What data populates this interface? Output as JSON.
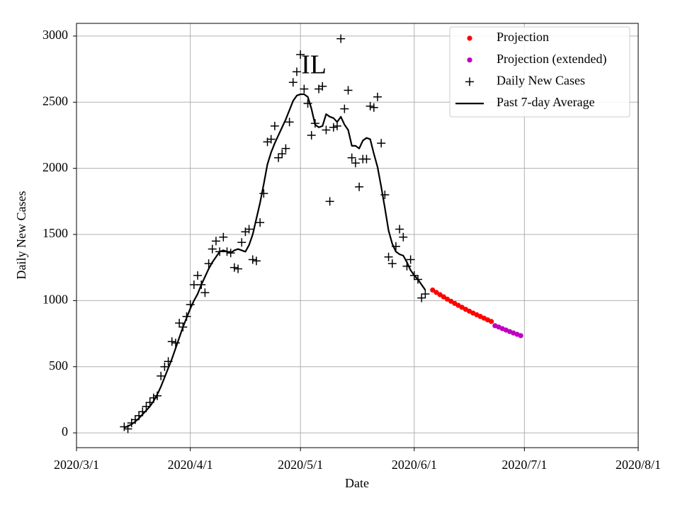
{
  "chart_data": {
    "type": "line",
    "title": "IL",
    "xlabel": "Date",
    "ylabel": "Daily New Cases",
    "xlim": [
      "2020-03-01",
      "2020-08-01"
    ],
    "xticks": [
      {
        "value": "2020-03-01",
        "label": "2020/3/1"
      },
      {
        "value": "2020-04-01",
        "label": "2020/4/1"
      },
      {
        "value": "2020-05-01",
        "label": "2020/5/1"
      },
      {
        "value": "2020-06-01",
        "label": "2020/6/1"
      },
      {
        "value": "2020-07-01",
        "label": "2020/7/1"
      },
      {
        "value": "2020-08-01",
        "label": "2020/8/1"
      }
    ],
    "ylim": [
      -112,
      3096
    ],
    "yticks": [
      0,
      500,
      1000,
      1500,
      2000,
      2500,
      3000
    ],
    "grid": true,
    "legend": "upper right",
    "series": [
      {
        "name": "Projection",
        "color": "#ff0000",
        "marker": "dot",
        "x": [
          "2020-06-06",
          "2020-06-07",
          "2020-06-08",
          "2020-06-09",
          "2020-06-10",
          "2020-06-11",
          "2020-06-12",
          "2020-06-13",
          "2020-06-14",
          "2020-06-15",
          "2020-06-16",
          "2020-06-17",
          "2020-06-18",
          "2020-06-19",
          "2020-06-20",
          "2020-06-21",
          "2020-06-22"
        ],
        "values": [
          1080,
          1062,
          1045,
          1028,
          1011,
          995,
          979,
          964,
          949,
          934,
          920,
          906,
          893,
          880,
          867,
          854,
          842
        ]
      },
      {
        "name": "Projection (extended)",
        "color": "#bf00bf",
        "marker": "dot",
        "x": [
          "2020-06-23",
          "2020-06-24",
          "2020-06-25",
          "2020-06-26",
          "2020-06-27",
          "2020-06-28",
          "2020-06-29",
          "2020-06-30"
        ],
        "values": [
          810,
          800,
          788,
          777,
          766,
          755,
          745,
          735
        ]
      },
      {
        "name": "Daily New Cases",
        "color": "#000000",
        "marker": "plus",
        "x": [
          "2020-03-14",
          "2020-03-15",
          "2020-03-16",
          "2020-03-17",
          "2020-03-18",
          "2020-03-19",
          "2020-03-20",
          "2020-03-21",
          "2020-03-22",
          "2020-03-23",
          "2020-03-24",
          "2020-03-25",
          "2020-03-26",
          "2020-03-27",
          "2020-03-28",
          "2020-03-29",
          "2020-03-30",
          "2020-03-31",
          "2020-04-01",
          "2020-04-02",
          "2020-04-03",
          "2020-04-04",
          "2020-04-05",
          "2020-04-06",
          "2020-04-07",
          "2020-04-08",
          "2020-04-09",
          "2020-04-10",
          "2020-04-11",
          "2020-04-12",
          "2020-04-13",
          "2020-04-14",
          "2020-04-15",
          "2020-04-16",
          "2020-04-17",
          "2020-04-18",
          "2020-04-19",
          "2020-04-20",
          "2020-04-21",
          "2020-04-22",
          "2020-04-23",
          "2020-04-24",
          "2020-04-25",
          "2020-04-26",
          "2020-04-27",
          "2020-04-28",
          "2020-04-29",
          "2020-04-30",
          "2020-05-01",
          "2020-05-02",
          "2020-05-03",
          "2020-05-04",
          "2020-05-05",
          "2020-05-06",
          "2020-05-07",
          "2020-05-08",
          "2020-05-09",
          "2020-05-10",
          "2020-05-11",
          "2020-05-12",
          "2020-05-13",
          "2020-05-14",
          "2020-05-15",
          "2020-05-16",
          "2020-05-17",
          "2020-05-18",
          "2020-05-19",
          "2020-05-20",
          "2020-05-21",
          "2020-05-22",
          "2020-05-23",
          "2020-05-24",
          "2020-05-25",
          "2020-05-26",
          "2020-05-27",
          "2020-05-28",
          "2020-05-29",
          "2020-05-30",
          "2020-05-31",
          "2020-06-01",
          "2020-06-02",
          "2020-06-03",
          "2020-06-04"
        ],
        "values": [
          46,
          30,
          75,
          100,
          130,
          160,
          200,
          230,
          265,
          280,
          430,
          500,
          540,
          690,
          680,
          830,
          800,
          880,
          970,
          1120,
          1190,
          1120,
          1060,
          1280,
          1390,
          1450,
          1370,
          1480,
          1370,
          1360,
          1250,
          1240,
          1440,
          1520,
          1540,
          1310,
          1300,
          1590,
          1810,
          2200,
          2220,
          2320,
          2080,
          2110,
          2150,
          2350,
          2650,
          2730,
          2860,
          2600,
          2490,
          2250,
          2340,
          2600,
          2620,
          2290,
          1750,
          2310,
          2320,
          2980,
          2450,
          2590,
          2080,
          2040,
          1860,
          2070,
          2070,
          2470,
          2460,
          2540,
          2190,
          1800,
          1330,
          1280,
          1410,
          1540,
          1480,
          1260,
          1310,
          1190,
          1160,
          1020,
          1050
        ]
      },
      {
        "name": "Past 7-day Average",
        "color": "#000000",
        "marker": "line",
        "x": [
          "2020-03-14",
          "2020-03-15",
          "2020-03-16",
          "2020-03-17",
          "2020-03-18",
          "2020-03-19",
          "2020-03-20",
          "2020-03-21",
          "2020-03-22",
          "2020-03-23",
          "2020-03-24",
          "2020-03-25",
          "2020-03-26",
          "2020-03-27",
          "2020-03-28",
          "2020-03-29",
          "2020-03-30",
          "2020-03-31",
          "2020-04-01",
          "2020-04-02",
          "2020-04-03",
          "2020-04-04",
          "2020-04-05",
          "2020-04-06",
          "2020-04-07",
          "2020-04-08",
          "2020-04-09",
          "2020-04-10",
          "2020-04-11",
          "2020-04-12",
          "2020-04-13",
          "2020-04-14",
          "2020-04-15",
          "2020-04-16",
          "2020-04-17",
          "2020-04-18",
          "2020-04-19",
          "2020-04-20",
          "2020-04-21",
          "2020-04-22",
          "2020-04-23",
          "2020-04-24",
          "2020-04-25",
          "2020-04-26",
          "2020-04-27",
          "2020-04-28",
          "2020-04-29",
          "2020-04-30",
          "2020-05-01",
          "2020-05-02",
          "2020-05-03",
          "2020-05-04",
          "2020-05-05",
          "2020-05-06",
          "2020-05-07",
          "2020-05-08",
          "2020-05-09",
          "2020-05-10",
          "2020-05-11",
          "2020-05-12",
          "2020-05-13",
          "2020-05-14",
          "2020-05-15",
          "2020-05-16",
          "2020-05-17",
          "2020-05-18",
          "2020-05-19",
          "2020-05-20",
          "2020-05-21",
          "2020-05-22",
          "2020-05-23",
          "2020-05-24",
          "2020-05-25",
          "2020-05-26",
          "2020-05-27",
          "2020-05-28",
          "2020-05-29",
          "2020-05-30",
          "2020-05-31",
          "2020-06-01",
          "2020-06-02",
          "2020-06-03",
          "2020-06-04"
        ],
        "values": [
          40,
          50,
          65,
          85,
          110,
          140,
          170,
          200,
          240,
          290,
          350,
          420,
          490,
          560,
          640,
          720,
          800,
          870,
          940,
          1000,
          1050,
          1120,
          1180,
          1240,
          1290,
          1330,
          1370,
          1380,
          1370,
          1360,
          1380,
          1390,
          1380,
          1370,
          1420,
          1500,
          1620,
          1740,
          1880,
          2030,
          2120,
          2190,
          2250,
          2310,
          2370,
          2440,
          2510,
          2550,
          2560,
          2560,
          2540,
          2450,
          2330,
          2310,
          2320,
          2410,
          2390,
          2380,
          2350,
          2390,
          2330,
          2290,
          2170,
          2170,
          2150,
          2210,
          2230,
          2220,
          2110,
          2010,
          1860,
          1700,
          1530,
          1430,
          1370,
          1350,
          1340,
          1290,
          1230,
          1190,
          1160,
          1120,
          1080
        ]
      }
    ]
  }
}
